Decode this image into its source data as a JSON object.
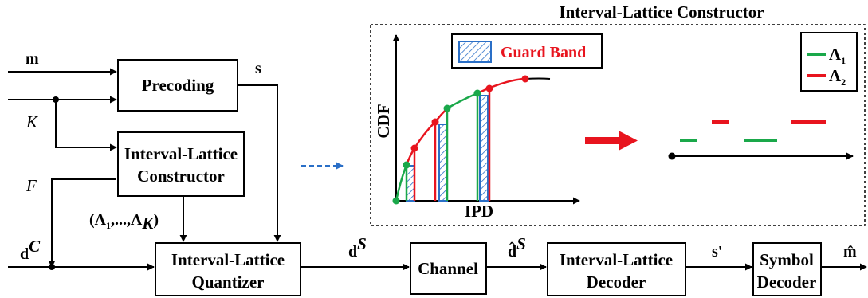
{
  "title": "Interval-Lattice Constructor",
  "blocks": {
    "precoding": "Precoding",
    "constructor": [
      "Interval-Lattice",
      "Constructor"
    ],
    "quantizer": [
      "Interval-Lattice",
      "Quantizer"
    ],
    "channel": "Channel",
    "decoder": [
      "Interval-Lattice",
      "Decoder"
    ],
    "symbol_decoder": [
      "Symbol",
      "Decoder"
    ]
  },
  "signals": {
    "m": "m",
    "K": "K",
    "F": "F",
    "dC": "d",
    "dC_sup": "C",
    "s": "s",
    "lambdas": "(Λ",
    "lambdas_sub1": "1",
    "lambdas_mid": ",...,Λ",
    "lambdas_subK": "K",
    "lambdas_close": ")",
    "dS": "d",
    "dS_sup": "S",
    "dS_hat": "d̂",
    "dS_hat_sup": "S",
    "s_prime": "s'",
    "m_hat": "m̂"
  },
  "inset": {
    "legend_guard": "Guard Band",
    "y_label": "CDF",
    "x_label": "IPD",
    "legend_lambda1": "Λ",
    "legend_lambda1_sub": "1",
    "legend_lambda2": "Λ",
    "legend_lambda2_sub": "2"
  },
  "colors": {
    "green": "#1aa84a",
    "red": "#e8141e",
    "blue": "#2a6fc7",
    "guard_text": "#e8141e"
  }
}
